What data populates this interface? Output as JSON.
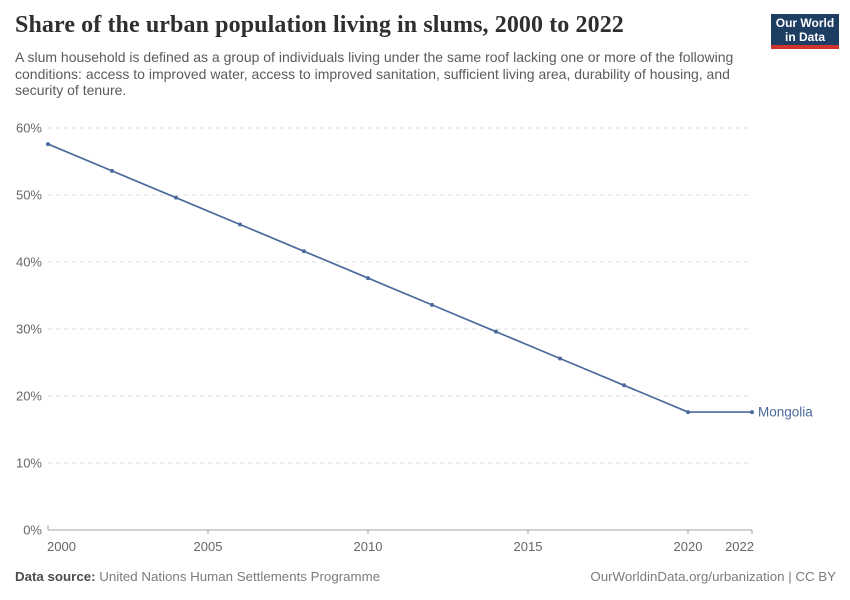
{
  "header": {
    "title": "Share of the urban population living in slums, 2000 to 2022",
    "subtitle": "A slum household is defined as a group of individuals living under the same roof lacking one or more of the following conditions: access to improved water, access to improved sanitation, sufficient living area, durability of housing, and security of tenure.",
    "logo": {
      "line1": "Our World",
      "line2": "in Data",
      "bg_color": "#1d3d63",
      "accent_color": "#d0342c"
    }
  },
  "chart_data": {
    "type": "line",
    "title": "Share of the urban population living in slums, 2000 to 2022",
    "x": [
      2000,
      2002,
      2004,
      2006,
      2008,
      2010,
      2012,
      2014,
      2016,
      2018,
      2020,
      2022
    ],
    "series": [
      {
        "name": "Mongolia",
        "color": "#4c6a9c",
        "values": [
          57.6,
          53.6,
          49.6,
          45.6,
          41.6,
          37.6,
          33.6,
          29.6,
          25.6,
          21.6,
          17.6,
          17.6
        ]
      }
    ],
    "xlabel": "",
    "ylabel": "",
    "xlim": [
      2000,
      2022
    ],
    "ylim": [
      0,
      60
    ],
    "x_ticks": [
      {
        "v": 2000,
        "label": "2000"
      },
      {
        "v": 2005,
        "label": "2005"
      },
      {
        "v": 2010,
        "label": "2010"
      },
      {
        "v": 2015,
        "label": "2015"
      },
      {
        "v": 2020,
        "label": "2020"
      },
      {
        "v": 2022,
        "label": "2022"
      }
    ],
    "y_ticks": [
      {
        "v": 0,
        "label": "0%"
      },
      {
        "v": 10,
        "label": "10%"
      },
      {
        "v": 20,
        "label": "20%"
      },
      {
        "v": 30,
        "label": "30%"
      },
      {
        "v": 40,
        "label": "40%"
      },
      {
        "v": 50,
        "label": "50%"
      },
      {
        "v": 60,
        "label": "60%"
      }
    ],
    "grid": "horizontal-dashed",
    "legend": "end-of-line-label",
    "colors": {
      "grid": "#dddddd",
      "axis": "#a3a3a3",
      "tick_label": "#666666"
    }
  },
  "footer": {
    "datasource_label": "Data source:",
    "datasource_value": " United Nations Human Settlements Programme",
    "right": "OurWorldinData.org/urbanization | CC BY"
  }
}
